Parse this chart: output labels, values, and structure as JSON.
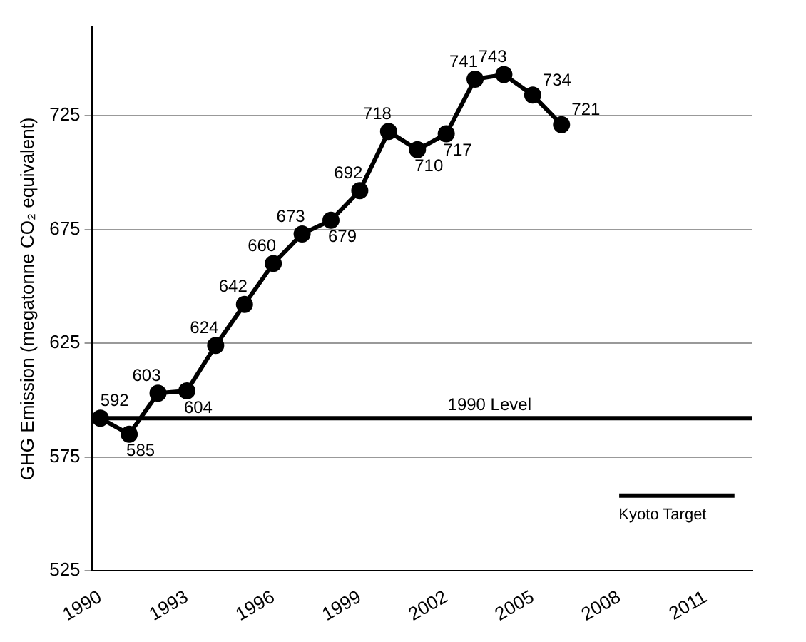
{
  "chart_data": {
    "type": "line",
    "ylabel": "GHG Emission (megatonne CO₂ equivalent)",
    "xlim": [
      1989.7,
      2012.6
    ],
    "xticks": [
      1990,
      1993,
      1996,
      1999,
      2002,
      2005,
      2008,
      2011
    ],
    "ylim": [
      525,
      764
    ],
    "yticks": [
      525,
      575,
      625,
      675,
      725
    ],
    "grid": "y",
    "marker": "circle",
    "ref_lines": [
      {
        "axis": "y",
        "value": 592,
        "label": "1990 Level",
        "color": "#000000"
      }
    ],
    "series": [
      {
        "color": "#000000",
        "x": [
          1990,
          1991,
          1992,
          1993,
          1994,
          1995,
          1996,
          1997,
          1998,
          1999,
          2000,
          2001,
          2002,
          2003,
          2004,
          2005,
          2006
        ],
        "values": [
          592,
          585,
          603,
          604,
          624,
          642,
          660,
          673,
          679,
          692,
          718,
          710,
          717,
          741,
          743,
          734,
          721
        ],
        "value_labels": [
          "592",
          "585",
          "603",
          "604",
          "624",
          "642",
          "660",
          "673",
          "679",
          "692",
          "718",
          "710",
          "717",
          "741",
          "743",
          "734",
          "721"
        ]
      },
      {
        "name": "Kyoto Target",
        "color": "#000000",
        "x": [
          2008,
          2012
        ],
        "values": [
          558,
          558
        ],
        "marker": "none"
      }
    ]
  }
}
